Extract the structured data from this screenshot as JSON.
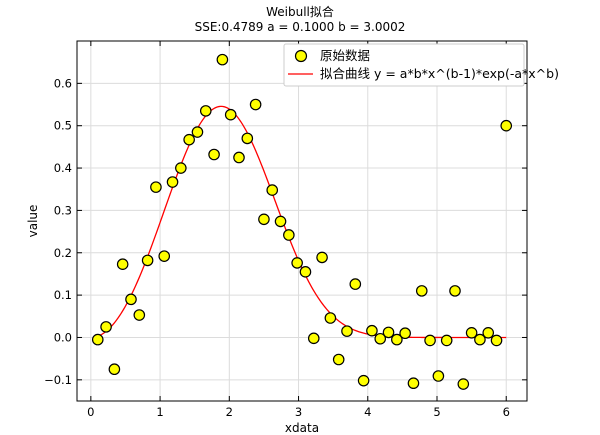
{
  "chart_data": {
    "type": "scatter",
    "title": "Weibull拟合",
    "subtitle": "SSE:0.4789  a = 0.1000 b = 3.0002",
    "xlabel": "xdata",
    "ylabel": "value",
    "xlim": [
      -0.2,
      6.3
    ],
    "ylim": [
      -0.15,
      0.7
    ],
    "xticks": [
      0,
      1,
      2,
      3,
      4,
      5,
      6
    ],
    "yticks": [
      -0.1,
      0.0,
      0.1,
      0.2,
      0.3,
      0.4,
      0.5,
      0.6
    ],
    "xtick_labels": [
      "0",
      "1",
      "2",
      "3",
      "4",
      "5",
      "6"
    ],
    "ytick_labels": [
      "−0.1",
      "0.0",
      "0.1",
      "0.2",
      "0.3",
      "0.4",
      "0.5",
      "0.6"
    ],
    "grid": true,
    "legend_position": "top-right",
    "series": [
      {
        "name": "原始数据",
        "kind": "scatter",
        "marker_fill": "#ffff00",
        "marker_edge": "#000000",
        "x": [
          0.1,
          0.22,
          0.34,
          0.46,
          0.58,
          0.7,
          0.82,
          0.94,
          1.06,
          1.18,
          1.3,
          1.42,
          1.54,
          1.66,
          1.78,
          1.9,
          2.02,
          2.14,
          2.26,
          2.38,
          2.5,
          2.62,
          2.74,
          2.86,
          2.98,
          3.1,
          3.22,
          3.34,
          3.46,
          3.58,
          3.7,
          3.82,
          3.94,
          4.06,
          4.18,
          4.3,
          4.42,
          4.54,
          4.66,
          4.78,
          4.9,
          5.02,
          5.14,
          5.26,
          5.38,
          5.5,
          5.62,
          5.74,
          5.86,
          6.0
        ],
        "y": [
          -0.005,
          0.025,
          -0.075,
          0.173,
          0.09,
          0.053,
          0.182,
          0.355,
          0.192,
          0.367,
          0.4,
          0.467,
          0.485,
          0.535,
          0.432,
          0.656,
          0.526,
          0.425,
          0.47,
          0.55,
          0.279,
          0.348,
          0.274,
          0.242,
          0.176,
          0.155,
          -0.002,
          0.189,
          0.046,
          -0.052,
          0.015,
          0.126,
          -0.102,
          0.016,
          -0.003,
          0.012,
          -0.005,
          0.01,
          -0.108,
          0.11,
          -0.007,
          -0.091,
          -0.007,
          0.11,
          -0.11,
          0.011,
          -0.005,
          0.011,
          -0.007,
          0.5
        ]
      },
      {
        "name": "拟合曲线 y = a*b*x^(b-1)*exp(-a*x^b)",
        "kind": "line",
        "color": "#ff0000",
        "a": 0.1,
        "b": 3.0002,
        "x_range": [
          0.1,
          6.0
        ]
      }
    ]
  }
}
